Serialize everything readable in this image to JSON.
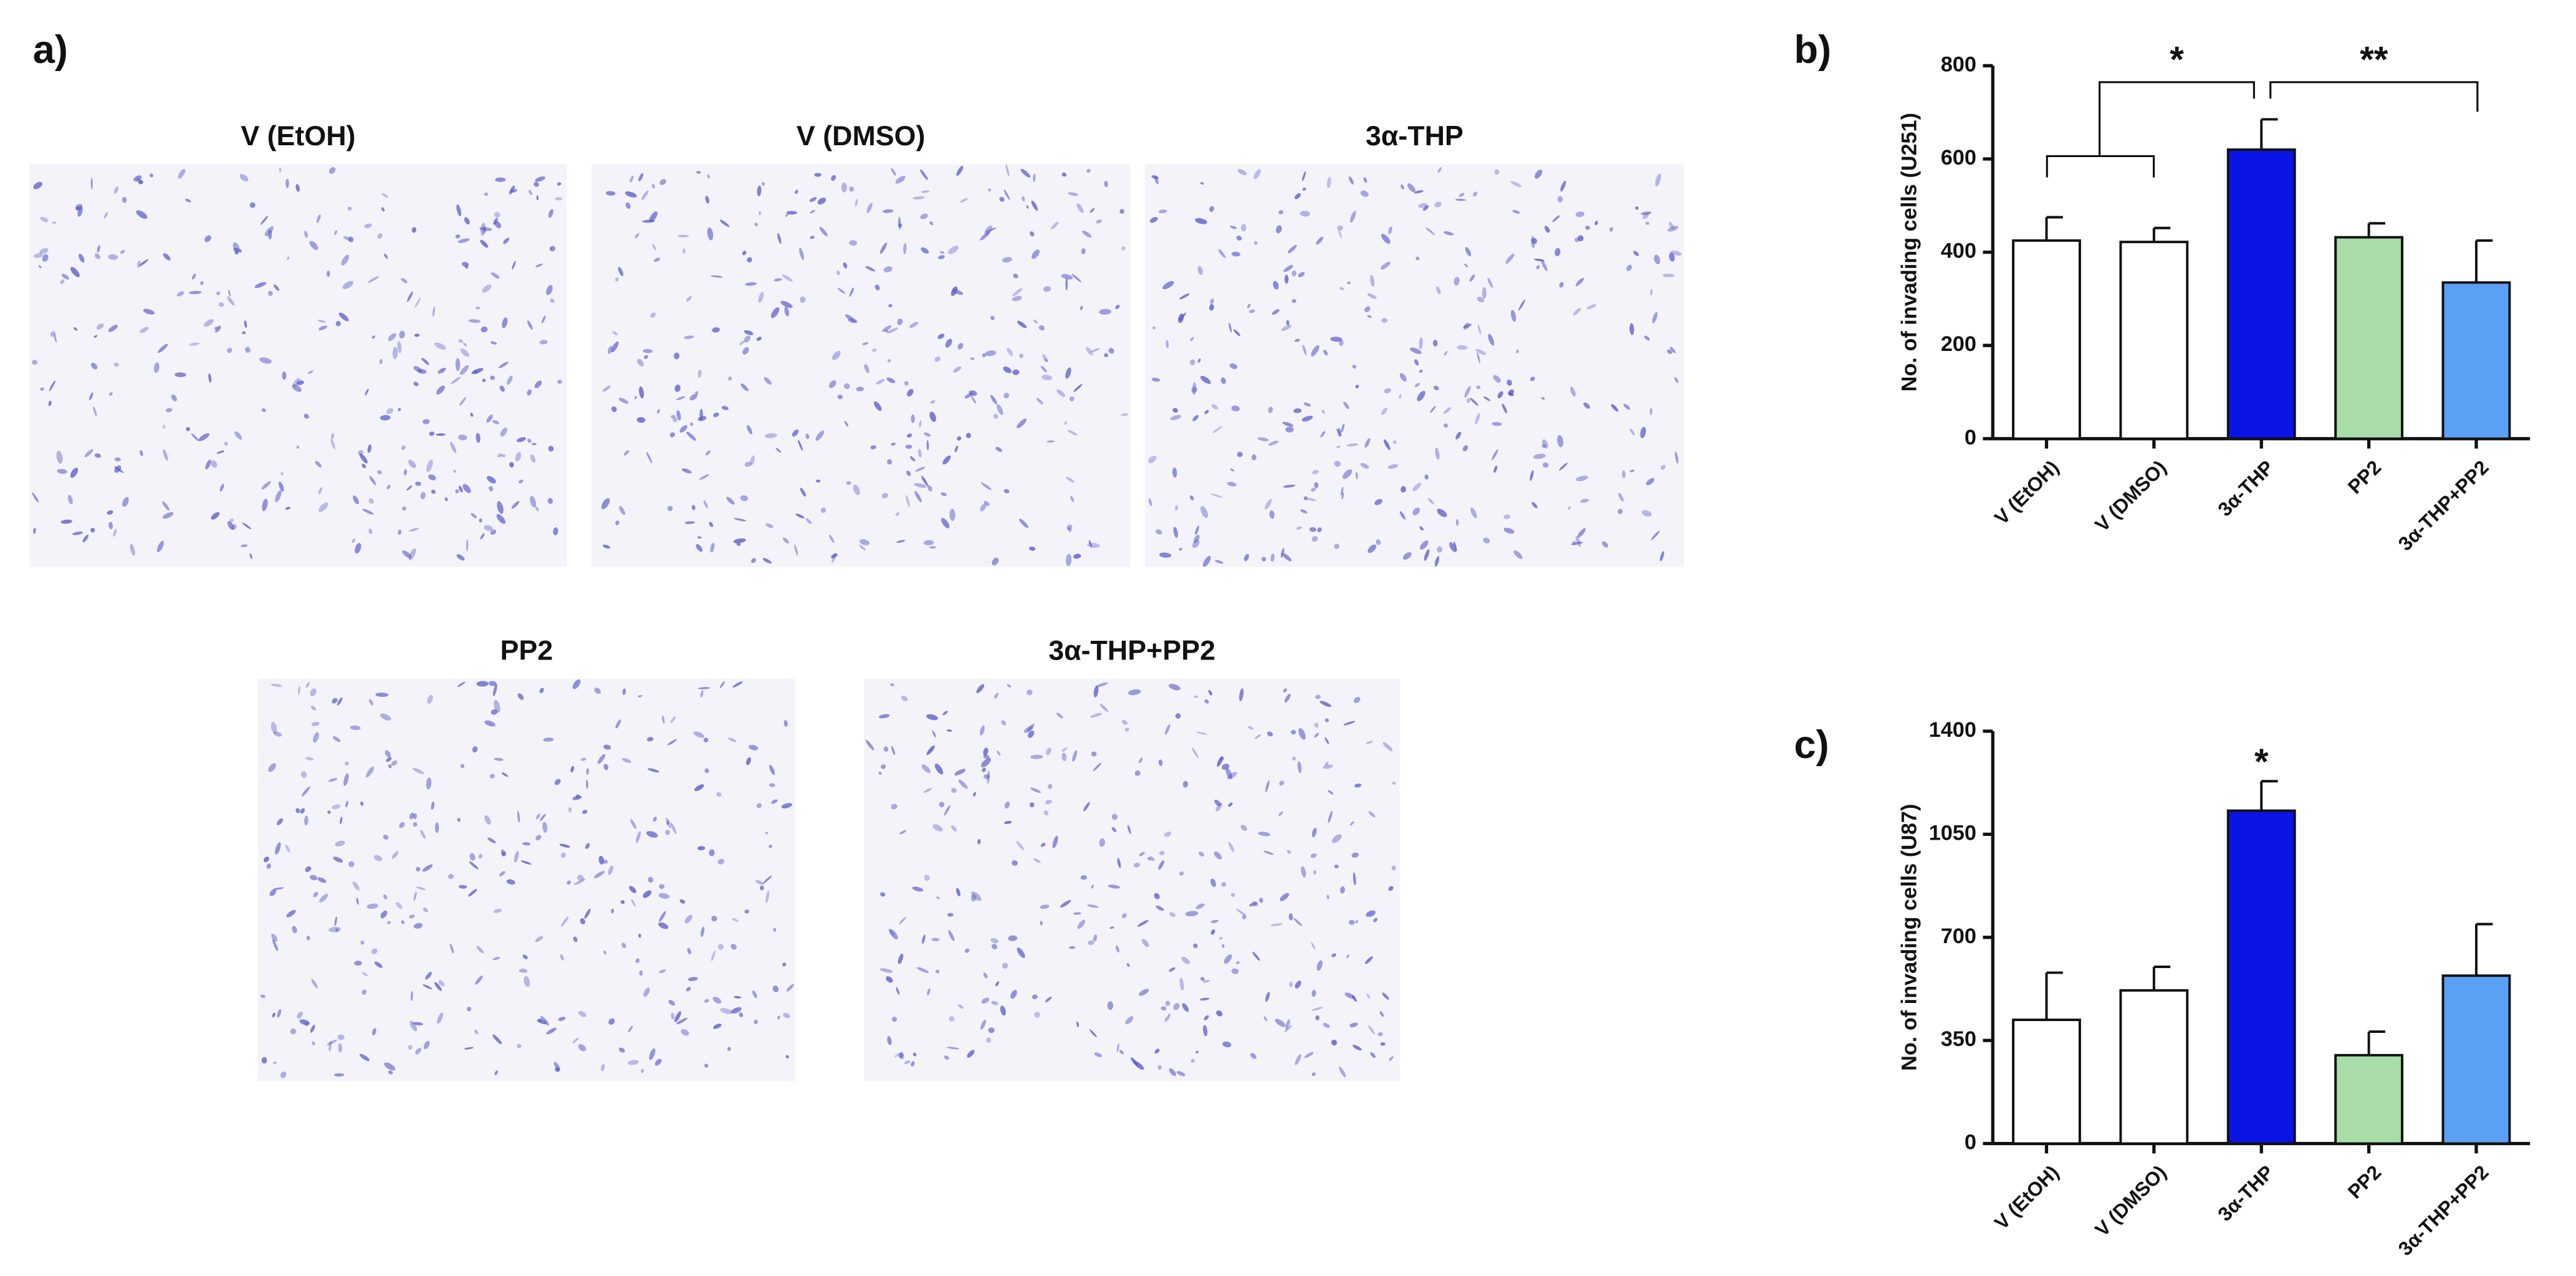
{
  "panel_a": {
    "label": "a)",
    "images": [
      {
        "title": "V (EtOH)"
      },
      {
        "title": "V (DMSO)"
      },
      {
        "title": "3α-THP"
      },
      {
        "title": "PP2"
      },
      {
        "title": "3α-THP+PP2"
      }
    ]
  },
  "chart_data": [
    {
      "type": "bar",
      "panel_label": "b)",
      "y_label": "No. of invading cells (U251)",
      "categories": [
        "V (EtOH)",
        "V (DMSO)",
        "3α-THP",
        "PP2",
        "3α-THP+PP2"
      ],
      "values": [
        425,
        422,
        620,
        432,
        335
      ],
      "errors": [
        50,
        30,
        65,
        30,
        90
      ],
      "colors": [
        "#ffffff",
        "#ffffff",
        "#0a14e6",
        "#a8dca8",
        "#5aa0f5"
      ],
      "ylim": [
        0,
        800
      ],
      "yticks": [
        0,
        200,
        400,
        600,
        800
      ],
      "annotations": [
        {
          "text": "*"
        },
        {
          "text": "**"
        }
      ]
    },
    {
      "type": "bar",
      "panel_label": "c)",
      "y_label": "No. of invading cells (U87)",
      "categories": [
        "V (EtOH)",
        "V (DMSO)",
        "3α-THP",
        "PP2",
        "3α-THP+PP2"
      ],
      "values": [
        420,
        520,
        1130,
        300,
        570
      ],
      "errors": [
        160,
        80,
        100,
        80,
        175
      ],
      "colors": [
        "#ffffff",
        "#ffffff",
        "#0a14e6",
        "#a8dca8",
        "#5aa0f5"
      ],
      "ylim": [
        0,
        1400
      ],
      "yticks": [
        0,
        350,
        700,
        1050,
        1400
      ],
      "annotations": [
        {
          "text": "*"
        }
      ]
    }
  ]
}
